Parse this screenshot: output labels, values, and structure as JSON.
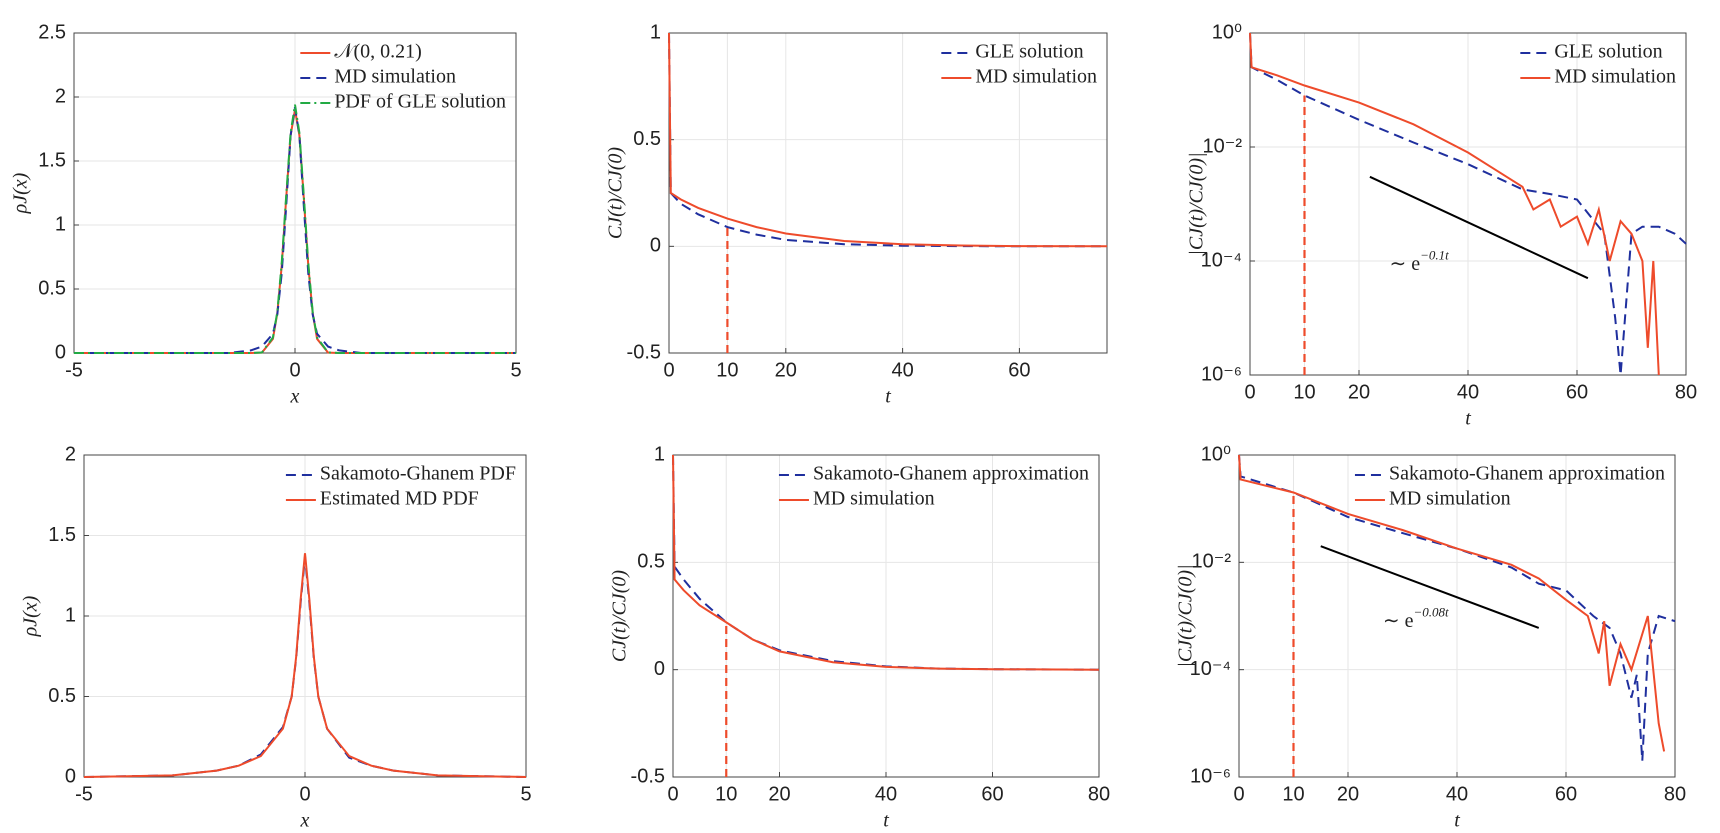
{
  "chart_data": [
    {
      "type": "line",
      "xlabel": "x",
      "ylabel": "ρJ(x)",
      "xlim": [
        -5,
        5
      ],
      "xticks": [
        -5,
        0,
        5
      ],
      "ylim": [
        0,
        2.5
      ],
      "yticks": [
        0,
        0.5,
        1,
        1.5,
        2,
        2.5
      ],
      "grid": true,
      "legend": "upper right",
      "series": [
        {
          "name": "𝒩(0, 0.21)",
          "color": "#ee4b2b",
          "style": "solid",
          "x": [
            -5,
            -1.5,
            -1,
            -0.75,
            -0.5,
            -0.4,
            -0.3,
            -0.2,
            -0.1,
            0,
            0.1,
            0.2,
            0.3,
            0.4,
            0.5,
            0.75,
            1,
            1.5,
            5
          ],
          "values": [
            0,
            0,
            0,
            0.003,
            0.11,
            0.31,
            0.68,
            1.21,
            1.7,
            1.9,
            1.7,
            1.21,
            0.68,
            0.31,
            0.11,
            0.003,
            0,
            0,
            0
          ]
        },
        {
          "name": "MD simulation",
          "color": "#1f2f9e",
          "style": "dashed",
          "x": [
            -5,
            -1.5,
            -1,
            -0.75,
            -0.5,
            -0.4,
            -0.3,
            -0.2,
            -0.1,
            0,
            0.1,
            0.2,
            0.3,
            0.4,
            0.5,
            0.75,
            1,
            1.5,
            5
          ],
          "values": [
            0,
            0,
            0.02,
            0.05,
            0.15,
            0.3,
            0.62,
            1.15,
            1.7,
            1.92,
            1.7,
            1.15,
            0.62,
            0.3,
            0.15,
            0.05,
            0.02,
            0,
            0
          ]
        },
        {
          "name": "PDF of GLE solution",
          "color": "#22aa44",
          "style": "dashdot",
          "x": [
            -5,
            -1.5,
            -1,
            -0.75,
            -0.5,
            -0.4,
            -0.3,
            -0.2,
            -0.1,
            0,
            0.1,
            0.2,
            0.3,
            0.4,
            0.5,
            0.75,
            1,
            1.5,
            5
          ],
          "values": [
            0,
            0,
            0,
            0.004,
            0.12,
            0.32,
            0.7,
            1.23,
            1.72,
            1.94,
            1.72,
            1.23,
            0.7,
            0.32,
            0.12,
            0.004,
            0,
            0,
            0
          ]
        }
      ]
    },
    {
      "type": "line",
      "xlabel": "t",
      "ylabel": "CJ(t)/CJ(0)",
      "xlim": [
        0,
        75
      ],
      "xticks": [
        0,
        10,
        20,
        40,
        60
      ],
      "ylim": [
        -0.5,
        1
      ],
      "yticks": [
        -0.5,
        0,
        0.5,
        1
      ],
      "grid": true,
      "legend": "upper right",
      "vline": {
        "x": 10,
        "top": 0.09,
        "color": "#ee4b2b"
      },
      "series": [
        {
          "name": "GLE solution",
          "color": "#1f2f9e",
          "style": "dashed",
          "x": [
            0,
            0.3,
            2,
            5,
            10,
            15,
            20,
            30,
            40,
            50,
            60,
            75
          ],
          "values": [
            1,
            0.25,
            0.2,
            0.15,
            0.09,
            0.055,
            0.03,
            0.01,
            0.003,
            0.001,
            0,
            0
          ]
        },
        {
          "name": "MD simulation",
          "color": "#ee4b2b",
          "style": "solid",
          "x": [
            0,
            0.3,
            2,
            5,
            10,
            15,
            20,
            30,
            40,
            50,
            60,
            75
          ],
          "values": [
            1,
            0.25,
            0.22,
            0.18,
            0.13,
            0.09,
            0.06,
            0.025,
            0.01,
            0.004,
            0.001,
            0
          ]
        }
      ]
    },
    {
      "type": "line",
      "xlabel": "t",
      "ylabel": "|CJ(t)/CJ(0)|",
      "xlim": [
        0,
        80
      ],
      "xticks": [
        0,
        10,
        20,
        40,
        60,
        80
      ],
      "ylim": [
        1e-06,
        1
      ],
      "log_y": true,
      "yticks": [
        {
          "value": 1e-06,
          "label": "10⁻⁶"
        },
        {
          "value": 0.0001,
          "label": "10⁻⁴"
        },
        {
          "value": 0.01,
          "label": "10⁻²"
        },
        {
          "value": 1,
          "label": "10⁰"
        }
      ],
      "grid": true,
      "legend": "upper right",
      "vline": {
        "x": 10,
        "top": 0.08,
        "color": "#ee4b2b"
      },
      "ref_line": {
        "x": [
          22,
          62
        ],
        "y": [
          0.003,
          5e-05
        ],
        "color": "#000000"
      },
      "annotation": {
        "text": "∼ e",
        "sup": "−0.1t"
      },
      "series": [
        {
          "name": "GLE solution",
          "color": "#1f2f9e",
          "style": "dashed",
          "x": [
            0,
            0.3,
            5,
            10,
            20,
            30,
            40,
            50,
            55,
            60,
            65,
            67,
            68,
            70,
            72,
            75,
            78,
            80
          ],
          "values": [
            1,
            0.25,
            0.15,
            0.08,
            0.03,
            0.012,
            0.005,
            0.0018,
            0.0015,
            0.0012,
            0.0003,
            1e-05,
            1e-06,
            0.0003,
            0.0004,
            0.0004,
            0.0003,
            0.0002
          ]
        },
        {
          "name": "MD simulation",
          "color": "#ee4b2b",
          "style": "solid",
          "x": [
            0,
            0.3,
            5,
            10,
            20,
            30,
            40,
            45,
            50,
            52,
            55,
            57,
            60,
            62,
            64,
            66,
            68,
            70,
            72,
            73,
            74,
            75
          ],
          "values": [
            1,
            0.25,
            0.18,
            0.12,
            0.06,
            0.025,
            0.008,
            0.004,
            0.002,
            0.0008,
            0.0012,
            0.0004,
            0.0006,
            0.0002,
            0.0008,
            0.0001,
            0.0005,
            0.0003,
            0.0001,
            3e-06,
            0.0001,
            1e-06
          ]
        }
      ]
    },
    {
      "type": "line",
      "xlabel": "x",
      "ylabel": "ρJ(x)",
      "xlim": [
        -5,
        5
      ],
      "xticks": [
        -5,
        0,
        5
      ],
      "ylim": [
        0,
        2
      ],
      "yticks": [
        0,
        0.5,
        1,
        1.5,
        2
      ],
      "grid": true,
      "legend": "upper right",
      "series": [
        {
          "name": "Sakamoto-Ghanem PDF",
          "color": "#1f2f9e",
          "style": "dashed",
          "x": [
            -5,
            -3,
            -2,
            -1.5,
            -1,
            -0.5,
            -0.3,
            -0.2,
            -0.1,
            0,
            0.1,
            0.2,
            0.3,
            0.5,
            1,
            1.5,
            2,
            3,
            5
          ],
          "values": [
            0,
            0.01,
            0.04,
            0.07,
            0.14,
            0.31,
            0.5,
            0.74,
            1.08,
            1.37,
            1.08,
            0.74,
            0.5,
            0.3,
            0.12,
            0.07,
            0.04,
            0.01,
            0
          ]
        },
        {
          "name": "Estimated MD PDF",
          "color": "#ee4b2b",
          "style": "solid",
          "x": [
            -5,
            -3,
            -2,
            -1.5,
            -1,
            -0.5,
            -0.3,
            -0.2,
            -0.1,
            0,
            0.1,
            0.2,
            0.3,
            0.5,
            1,
            1.5,
            2,
            3,
            5
          ],
          "values": [
            0,
            0.01,
            0.04,
            0.07,
            0.13,
            0.3,
            0.5,
            0.75,
            1.1,
            1.39,
            1.1,
            0.75,
            0.5,
            0.3,
            0.13,
            0.07,
            0.04,
            0.01,
            0
          ]
        }
      ]
    },
    {
      "type": "line",
      "xlabel": "t",
      "ylabel": "CJ(t)/CJ(0)",
      "xlim": [
        0,
        80
      ],
      "xticks": [
        0,
        10,
        20,
        40,
        60,
        80
      ],
      "ylim": [
        -0.5,
        1
      ],
      "yticks": [
        -0.5,
        0,
        0.5,
        1
      ],
      "grid": true,
      "legend": "upper right",
      "vline": {
        "x": 10,
        "top": 0.22,
        "color": "#ee4b2b"
      },
      "series": [
        {
          "name": "Sakamoto-Ghanem approximation",
          "color": "#1f2f9e",
          "style": "dashed",
          "x": [
            0,
            0.3,
            2,
            5,
            10,
            15,
            20,
            30,
            40,
            50,
            60,
            80
          ],
          "values": [
            1,
            0.48,
            0.42,
            0.33,
            0.22,
            0.14,
            0.09,
            0.04,
            0.015,
            0.005,
            0.002,
            0
          ]
        },
        {
          "name": "MD simulation",
          "color": "#ee4b2b",
          "style": "solid",
          "x": [
            0,
            0.3,
            2,
            5,
            10,
            15,
            20,
            30,
            40,
            50,
            60,
            80
          ],
          "values": [
            1,
            0.42,
            0.37,
            0.3,
            0.22,
            0.14,
            0.085,
            0.035,
            0.013,
            0.005,
            0.002,
            0
          ]
        }
      ]
    },
    {
      "type": "line",
      "xlabel": "t",
      "ylabel": "|CJ(t)/CJ(0)|",
      "xlim": [
        0,
        80
      ],
      "xticks": [
        0,
        10,
        20,
        40,
        60,
        80
      ],
      "ylim": [
        1e-06,
        1
      ],
      "log_y": true,
      "yticks": [
        {
          "value": 1e-06,
          "label": "10⁻⁶"
        },
        {
          "value": 0.0001,
          "label": "10⁻⁴"
        },
        {
          "value": 0.01,
          "label": "10⁻²"
        },
        {
          "value": 1,
          "label": "10⁰"
        }
      ],
      "grid": true,
      "legend": "upper right",
      "vline": {
        "x": 10,
        "top": 0.2,
        "color": "#ee4b2b"
      },
      "ref_line": {
        "x": [
          15,
          55
        ],
        "y": [
          0.02,
          0.0006
        ],
        "color": "#000000"
      },
      "annotation": {
        "text": "∼ e",
        "sup": "−0.08t"
      },
      "series": [
        {
          "name": "Sakamoto-Ghanem approximation",
          "color": "#1f2f9e",
          "style": "dashed",
          "x": [
            0,
            0.3,
            10,
            20,
            30,
            40,
            50,
            55,
            60,
            65,
            68,
            70,
            72,
            73,
            74,
            75,
            77,
            80
          ],
          "values": [
            1,
            0.4,
            0.2,
            0.07,
            0.035,
            0.018,
            0.008,
            0.004,
            0.003,
            0.001,
            0.0006,
            0.0002,
            3e-05,
            8e-05,
            2e-06,
            0.0002,
            0.001,
            0.0008
          ]
        },
        {
          "name": "MD simulation",
          "color": "#ee4b2b",
          "style": "solid",
          "x": [
            0,
            0.3,
            10,
            20,
            30,
            40,
            50,
            55,
            60,
            64,
            66,
            67,
            68,
            70,
            72,
            75,
            77,
            78
          ],
          "values": [
            1,
            0.35,
            0.2,
            0.08,
            0.04,
            0.018,
            0.009,
            0.005,
            0.002,
            0.001,
            0.0002,
            0.0008,
            5e-05,
            0.0003,
            0.0001,
            0.001,
            1e-05,
            3e-06
          ]
        }
      ]
    }
  ]
}
